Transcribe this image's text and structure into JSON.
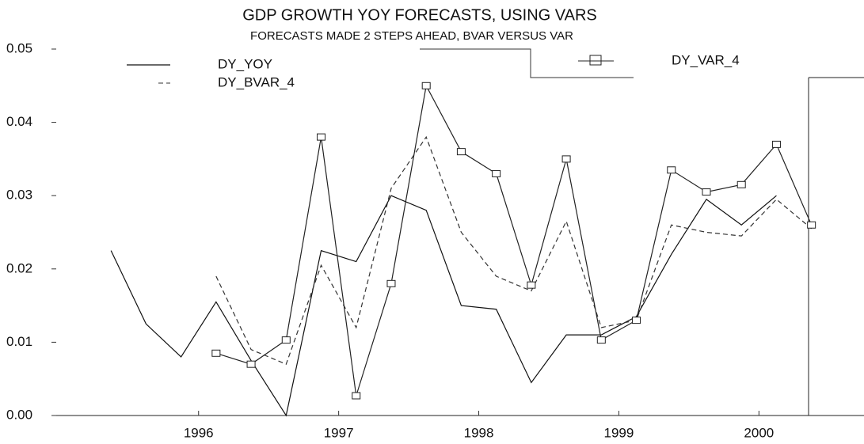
{
  "chart_data": {
    "type": "line",
    "title": "GDP GROWTH YOY FORECASTS, USING VARS",
    "subtitle": "FORECASTS MADE 2 STEPS AHEAD, BVAR VERSUS VAR",
    "x": [
      1995.875,
      1996.125,
      1996.375,
      1996.625,
      1996.875,
      1997.125,
      1997.375,
      1997.625,
      1997.875,
      1998.125,
      1998.375,
      1998.625,
      1998.875,
      1999.125,
      1999.375,
      1999.625,
      1999.875,
      2000.125,
      2000.375,
      2000.625,
      2000.875
    ],
    "series": [
      {
        "name": "DY_YOY",
        "color": "#111111",
        "line_style": "solid",
        "values": [
          0.0225,
          0.0125,
          0.008,
          0.0155,
          0.0075,
          0.0,
          0.0225,
          0.021,
          0.03,
          0.028,
          0.015,
          0.0145,
          0.0045,
          0.011,
          0.011,
          0.0135,
          0.022,
          0.0295,
          0.026,
          0.03,
          null
        ]
      },
      {
        "name": "DY_BVAR_4",
        "color": "#333333",
        "line_style": "dashed",
        "values": [
          null,
          null,
          null,
          0.019,
          0.009,
          0.007,
          0.0205,
          0.012,
          0.031,
          0.038,
          0.025,
          0.019,
          0.017,
          0.0265,
          0.012,
          0.013,
          0.026,
          0.025,
          0.0245,
          0.0295,
          0.0255
        ]
      },
      {
        "name": "DY_VAR_4",
        "color": "#222222",
        "line_style": "solid",
        "marker": "square",
        "values": [
          null,
          null,
          null,
          0.0085,
          0.007,
          0.0103,
          0.038,
          0.0027,
          0.018,
          0.045,
          0.036,
          0.033,
          0.0178,
          0.035,
          0.0103,
          0.013,
          0.0335,
          0.0305,
          0.0315,
          0.037,
          0.026
        ]
      }
    ],
    "xlim": [
      1995.45,
      2001.25
    ],
    "xticks": [
      {
        "value": 1996.5,
        "label": "1996"
      },
      {
        "value": 1997.5,
        "label": "1997"
      },
      {
        "value": 1998.5,
        "label": "1998"
      },
      {
        "value": 1999.5,
        "label": "1999"
      },
      {
        "value": 2000.5,
        "label": "2000"
      }
    ],
    "ylim": [
      0,
      0.05
    ],
    "yticks": [
      {
        "value": 0,
        "label": "0.00"
      },
      0.01,
      0.02,
      0.03,
      0.04,
      0.05
    ],
    "grid": false
  }
}
